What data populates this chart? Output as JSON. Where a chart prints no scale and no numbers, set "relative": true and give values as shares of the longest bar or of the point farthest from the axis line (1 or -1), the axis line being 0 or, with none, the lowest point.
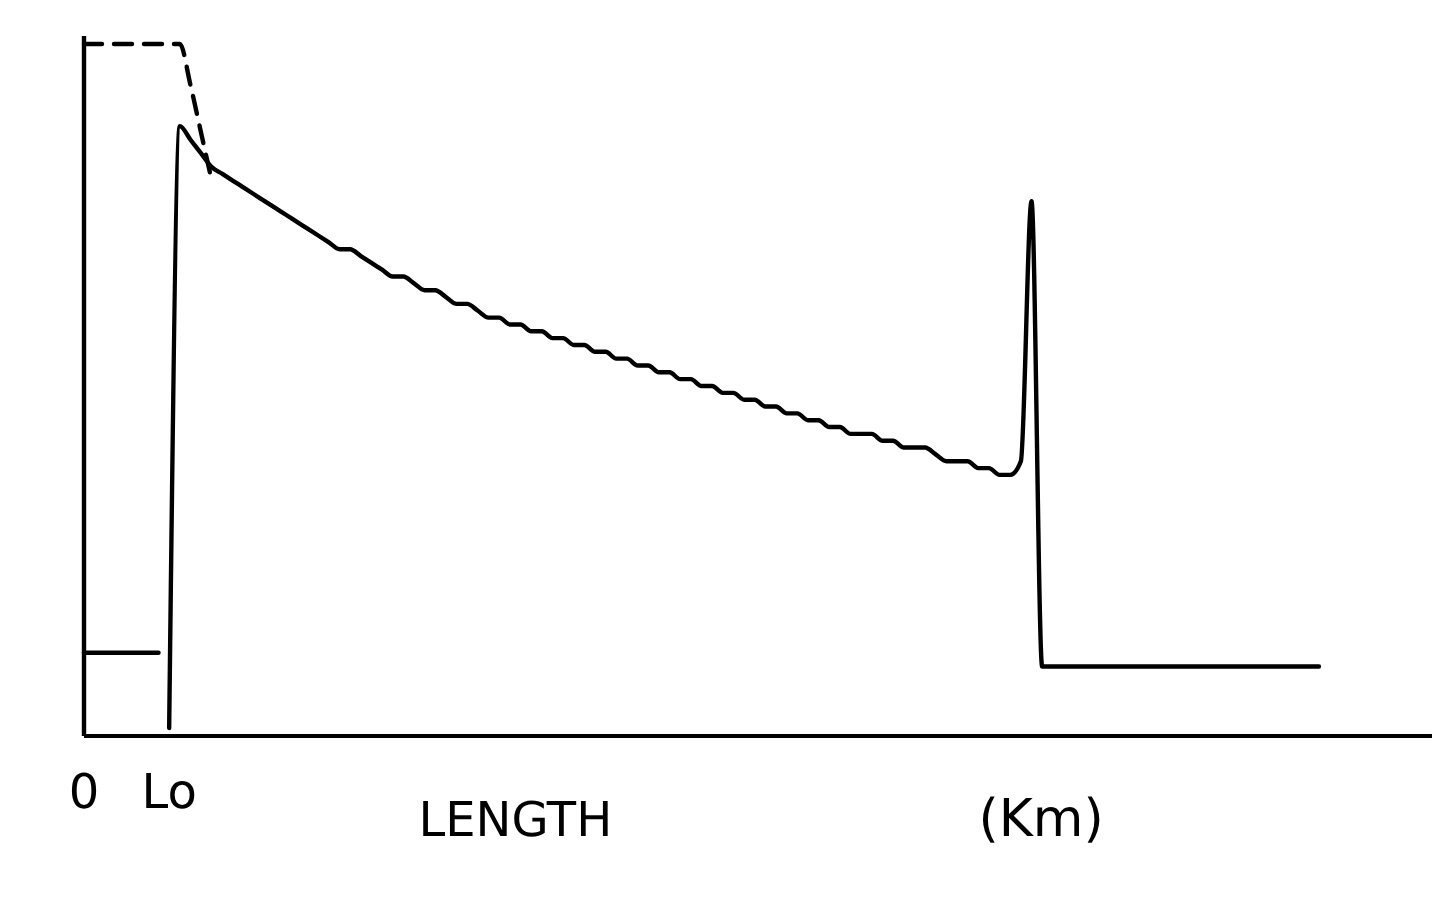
{
  "chart_data": {
    "type": "line",
    "relative": true,
    "xlabel": "LENGTH",
    "annotations": [
      "(Km)"
    ],
    "tick_labels": "x",
    "grid": false,
    "marker": "none",
    "categories": [
      "0",
      null,
      null,
      null,
      null,
      null,
      null,
      null,
      "Lo",
      null,
      null,
      null,
      null,
      null,
      null,
      null,
      null,
      null,
      null,
      null,
      null,
      null,
      null,
      null,
      null,
      null,
      null,
      null,
      null,
      null,
      null,
      null,
      null,
      null,
      null,
      null,
      null,
      null,
      null,
      null,
      null,
      null,
      null,
      null,
      null,
      null,
      null,
      null,
      null,
      null,
      null,
      null,
      null,
      null,
      null,
      null,
      null,
      null,
      null,
      null,
      null,
      null,
      null,
      null,
      null,
      null,
      null,
      null,
      null,
      null,
      null,
      null,
      null,
      null,
      null,
      null,
      null,
      null,
      null,
      null,
      null,
      null,
      null,
      null,
      null,
      null,
      null,
      null,
      null,
      null,
      null,
      null,
      null,
      null,
      null,
      null,
      null,
      null,
      null,
      null,
      null,
      null,
      null,
      null,
      null,
      null,
      null,
      null,
      null,
      null,
      null,
      null,
      null,
      null,
      null,
      null,
      null
    ],
    "series": [
      {
        "color": "#000000",
        "line_style": "solid",
        "values": [
          0.11,
          0.11,
          0.11,
          0.11,
          0.11,
          0.11,
          0.11,
          0.11,
          null,
          null,
          null,
          null,
          null,
          null,
          null,
          null,
          null,
          null,
          null,
          null,
          null,
          null,
          null,
          null,
          null,
          null,
          null,
          null,
          null,
          null,
          null,
          null,
          null,
          null,
          null,
          null,
          null,
          null,
          null,
          null,
          null,
          null,
          null,
          null,
          null,
          null,
          null,
          null,
          null,
          null,
          null,
          null,
          null,
          null,
          null,
          null,
          null,
          null,
          null,
          null,
          null,
          null,
          null,
          null,
          null,
          null,
          null,
          null,
          null,
          null,
          null,
          null,
          null,
          null,
          null,
          null,
          null,
          null,
          null,
          null,
          null,
          null,
          null,
          null,
          null,
          null,
          null,
          null,
          null,
          null,
          null,
          null,
          null,
          null,
          null,
          null,
          null,
          null,
          null,
          null,
          null,
          null,
          null,
          null,
          null,
          null,
          null,
          null,
          null,
          null,
          null,
          null,
          null,
          null,
          null,
          null,
          null
        ]
      },
      {
        "color": "#000000",
        "line_style": "solid",
        "values": [
          null,
          null,
          null,
          null,
          null,
          null,
          null,
          null,
          0,
          0.88,
          0.86,
          0.84,
          0.82,
          0.81,
          0.8,
          0.79,
          0.78,
          0.77,
          0.76,
          0.75,
          0.74,
          0.73,
          0.72,
          0.71,
          0.7,
          0.7,
          0.69,
          0.68,
          0.67,
          0.66,
          0.66,
          0.65,
          0.64,
          0.64,
          0.63,
          0.62,
          0.62,
          0.61,
          0.6,
          0.6,
          0.59,
          0.59,
          0.58,
          0.58,
          0.57,
          0.57,
          0.56,
          0.56,
          0.55,
          0.55,
          0.54,
          0.54,
          0.53,
          0.53,
          0.52,
          0.52,
          0.51,
          0.51,
          0.5,
          0.5,
          0.49,
          0.49,
          0.48,
          0.48,
          0.47,
          0.47,
          0.46,
          0.46,
          0.45,
          0.45,
          0.44,
          0.44,
          0.43,
          0.43,
          0.43,
          0.42,
          0.42,
          0.41,
          0.41,
          0.41,
          0.4,
          0.39,
          0.39,
          0.39,
          0.38,
          0.38,
          0.37,
          0.37,
          0.39,
          0.77,
          0.09,
          0.09,
          0.09,
          0.09,
          0.09,
          0.09,
          0.09,
          0.09,
          0.09,
          0.09,
          0.09,
          0.09,
          0.09,
          0.09,
          0.09,
          0.09,
          0.09,
          0.09,
          0.09,
          0.09,
          0.09,
          0.09,
          0.09,
          0.09,
          0.09,
          0.09,
          0.09
        ]
      },
      {
        "color": "#000000",
        "line_style": "dashed",
        "values": [
          1,
          1,
          1,
          1,
          1,
          1,
          1,
          1,
          1,
          1,
          0.94,
          0.87,
          0.8,
          null,
          null,
          null,
          null,
          null,
          null,
          null,
          null,
          null,
          null,
          null,
          null,
          null,
          null,
          null,
          null,
          null,
          null,
          null,
          null,
          null,
          null,
          null,
          null,
          null,
          null,
          null,
          null,
          null,
          null,
          null,
          null,
          null,
          null,
          null,
          null,
          null,
          null,
          null,
          null,
          null,
          null,
          null,
          null,
          null,
          null,
          null,
          null,
          null,
          null,
          null,
          null,
          null,
          null,
          null,
          null,
          null,
          null,
          null,
          null,
          null,
          null,
          null,
          null,
          null,
          null,
          null,
          null,
          null,
          null,
          null,
          null,
          null,
          null,
          null,
          null,
          null,
          null,
          null,
          null,
          null,
          null,
          null,
          null,
          null,
          null,
          null,
          null,
          null,
          null,
          null,
          null,
          null,
          null,
          null,
          null,
          null,
          null,
          null,
          null,
          null,
          null,
          null,
          null
        ]
      }
    ]
  }
}
